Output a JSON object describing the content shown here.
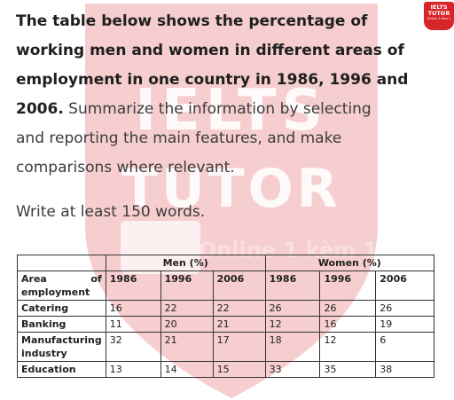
{
  "prompt": {
    "bold_lines": [
      "The table below shows the percentage of",
      "working men and women in different areas of",
      "employment in one country in 1986, 1996 and"
    ],
    "bold_tail": "2006.",
    "normal_text": [
      " Summarize the information by selecting",
      "and reporting the main features, and make",
      "comparisons where relevant."
    ],
    "instruction": "Write at least 150 words."
  },
  "logo": {
    "line1": "IELTS",
    "line2": "TUTOR",
    "line3": "Online 1 kèm 1"
  },
  "watermark": {
    "line1": "IELTS",
    "line2": "TUTOR",
    "line3": "Online 1 kèm 1"
  },
  "table": {
    "group_headers": [
      "Men (%)",
      "Women (%)"
    ],
    "area_label_left": "Area",
    "area_label_right": "of",
    "area_label_bottom": "employment",
    "years": [
      "1986",
      "1996",
      "2006",
      "1986",
      "1996",
      "2006"
    ],
    "rows": [
      {
        "label": "Catering",
        "values": [
          "16",
          "22",
          "22",
          "26",
          "26",
          "26"
        ]
      },
      {
        "label": "Banking",
        "values": [
          "11",
          "20",
          "21",
          "12",
          "16",
          "19"
        ]
      },
      {
        "label": "Manufacturing industry",
        "label_line1": "Manufacturing",
        "label_line2": "industry",
        "values": [
          "32",
          "21",
          "17",
          "18",
          "12",
          "6"
        ]
      },
      {
        "label": "Education",
        "values": [
          "13",
          "14",
          "15",
          "33",
          "35",
          "38"
        ]
      }
    ]
  },
  "colors": {
    "watermark": "#d7262b",
    "logo": "#d7262b",
    "text": "#1a1a1a"
  }
}
